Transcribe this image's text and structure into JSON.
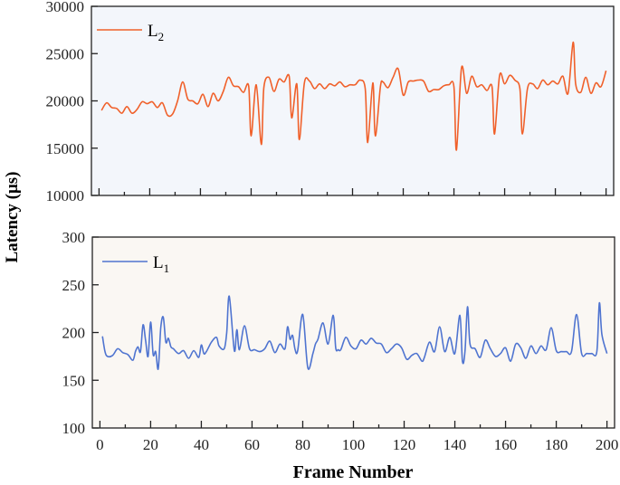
{
  "figure": {
    "ylabel": "Latency (μs)",
    "xlabel": "Frame Number"
  },
  "chart_data": [
    {
      "type": "line",
      "panel": "top",
      "legend": [
        {
          "label": "L",
          "subscript": "2",
          "color": "#f0602a"
        }
      ],
      "legend_position": "upper-left",
      "series_name": "L2",
      "color": "#f0602a",
      "background": "#f3f6fb",
      "xlabel": "Frame Number",
      "ylabel": "Latency (μs)",
      "xlim": [
        -3,
        203
      ],
      "ylim": [
        10000,
        30000
      ],
      "yticks": [
        10000,
        15000,
        20000,
        25000,
        30000
      ],
      "ytick_labels": [
        "10000",
        "15000",
        "20000",
        "25000",
        "30000"
      ],
      "xticks_major": [
        0,
        20,
        40,
        60,
        80,
        100,
        120,
        140,
        160,
        180,
        200
      ],
      "grid": false,
      "x": [
        1,
        3,
        5,
        7,
        9,
        11,
        13,
        15,
        17,
        19,
        21,
        23,
        25,
        27,
        29,
        31,
        33,
        35,
        37,
        39,
        41,
        43,
        45,
        47,
        49,
        51,
        53,
        55,
        57,
        59,
        60,
        62,
        64,
        65,
        67,
        69,
        71,
        73,
        75,
        76,
        78,
        79,
        81,
        83,
        85,
        87,
        89,
        91,
        93,
        95,
        97,
        99,
        101,
        103,
        105,
        106,
        108,
        109,
        111,
        112,
        114,
        116,
        118,
        120,
        122,
        124,
        126,
        128,
        130,
        132,
        134,
        136,
        138,
        140,
        141,
        143,
        145,
        147,
        149,
        151,
        153,
        155,
        156,
        158,
        160,
        162,
        164,
        166,
        167,
        169,
        171,
        173,
        175,
        177,
        179,
        181,
        183,
        185,
        187,
        188,
        190,
        192,
        194,
        196,
        198,
        200
      ],
      "values": [
        19000,
        19800,
        19300,
        19200,
        18700,
        19400,
        18700,
        19100,
        19900,
        19700,
        19900,
        19300,
        19800,
        18500,
        18600,
        20000,
        22000,
        20200,
        20000,
        19700,
        20700,
        19400,
        20800,
        20000,
        21000,
        22500,
        21600,
        21500,
        20900,
        21600,
        16300,
        21700,
        15400,
        21400,
        22500,
        21000,
        22300,
        22000,
        22600,
        18200,
        21800,
        15900,
        21900,
        22100,
        21300,
        21800,
        21300,
        21800,
        21600,
        22000,
        21500,
        21700,
        21700,
        22200,
        21300,
        15600,
        21900,
        16300,
        21500,
        22000,
        21400,
        22500,
        23400,
        20600,
        22000,
        22100,
        22200,
        22100,
        21000,
        21200,
        21200,
        21600,
        21700,
        21500,
        14800,
        23500,
        20800,
        22600,
        21500,
        21700,
        21100,
        21500,
        16500,
        22700,
        21800,
        22700,
        22200,
        21300,
        16500,
        21300,
        21800,
        21300,
        22200,
        21700,
        22100,
        21800,
        22600,
        20800,
        26200,
        21800,
        20900,
        22500,
        20800,
        21900,
        21500,
        23200
      ]
    },
    {
      "type": "line",
      "panel": "bottom",
      "legend": [
        {
          "label": "L",
          "subscript": "1",
          "color": "#4f74d0"
        }
      ],
      "legend_position": "upper-left",
      "series_name": "L1",
      "color": "#4f74d0",
      "background": "#faf7f3",
      "xlabel": "Frame Number",
      "ylabel": "Latency (μs)",
      "xlim": [
        -3,
        203
      ],
      "ylim": [
        100,
        300
      ],
      "yticks": [
        100,
        150,
        200,
        250,
        300
      ],
      "ytick_labels": [
        "100",
        "150",
        "200",
        "250",
        "300"
      ],
      "xticks_major": [
        0,
        20,
        40,
        60,
        80,
        100,
        120,
        140,
        160,
        180,
        200
      ],
      "xtick_labels": [
        "0",
        "20",
        "40",
        "60",
        "80",
        "100",
        "120",
        "140",
        "160",
        "180",
        "200"
      ],
      "grid": false,
      "x": [
        1,
        2,
        3,
        5,
        7,
        9,
        11,
        13,
        14,
        15,
        16,
        17,
        18,
        19,
        20,
        21,
        22,
        23,
        24,
        25,
        26,
        27,
        28,
        29,
        31,
        33,
        35,
        37,
        39,
        40,
        41,
        42,
        44,
        46,
        47,
        49,
        50,
        51,
        53,
        54,
        55,
        57,
        59,
        61,
        63,
        65,
        67,
        69,
        71,
        73,
        74,
        75,
        76,
        77,
        78,
        80,
        82,
        84,
        85,
        86,
        88,
        90,
        92,
        93,
        94,
        95,
        97,
        99,
        101,
        103,
        105,
        107,
        109,
        111,
        113,
        115,
        117,
        119,
        121,
        123,
        125,
        127,
        128,
        130,
        132,
        134,
        136,
        138,
        140,
        142,
        143,
        144,
        145,
        146,
        148,
        150,
        152,
        154,
        156,
        158,
        160,
        162,
        164,
        166,
        168,
        170,
        172,
        174,
        176,
        178,
        180,
        182,
        184,
        186,
        188,
        190,
        192,
        194,
        196,
        197,
        198,
        200
      ],
      "values": [
        196,
        180,
        175,
        176,
        183,
        179,
        177,
        171,
        180,
        185,
        180,
        208,
        192,
        175,
        211,
        177,
        180,
        162,
        205,
        216,
        190,
        194,
        185,
        183,
        178,
        181,
        173,
        181,
        174,
        187,
        178,
        180,
        190,
        195,
        186,
        183,
        200,
        238,
        181,
        203,
        182,
        207,
        183,
        182,
        180,
        183,
        191,
        179,
        188,
        183,
        206,
        193,
        197,
        182,
        181,
        219,
        163,
        178,
        188,
        193,
        210,
        188,
        218,
        184,
        182,
        182,
        195,
        186,
        183,
        192,
        188,
        194,
        189,
        188,
        179,
        183,
        188,
        184,
        172,
        176,
        178,
        170,
        174,
        190,
        180,
        206,
        180,
        195,
        178,
        218,
        170,
        180,
        227,
        188,
        183,
        174,
        192,
        183,
        175,
        178,
        184,
        170,
        188,
        184,
        173,
        186,
        178,
        186,
        182,
        205,
        181,
        180,
        180,
        180,
        219,
        178,
        178,
        178,
        180,
        231,
        198,
        178
      ]
    }
  ]
}
